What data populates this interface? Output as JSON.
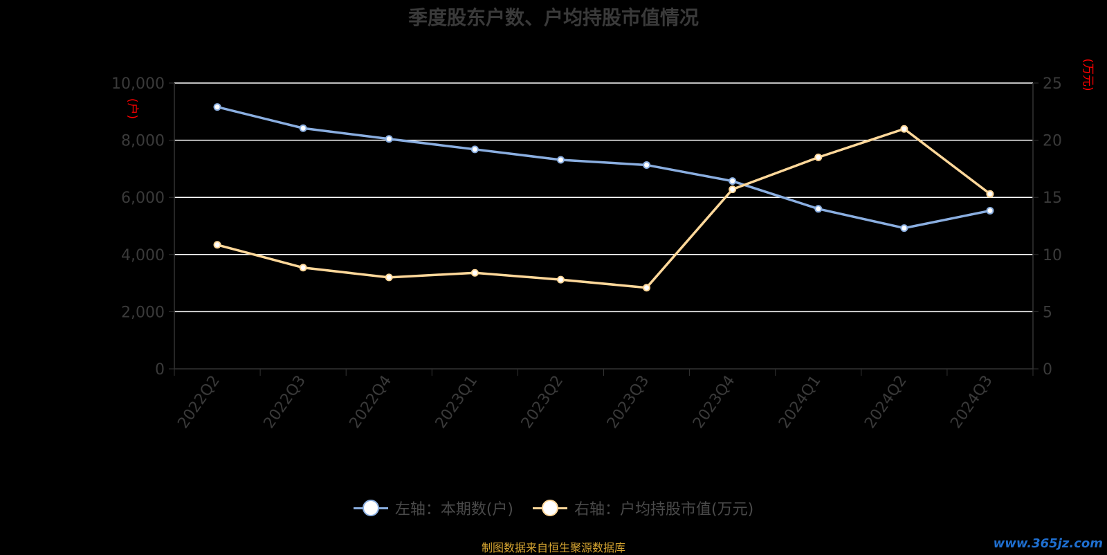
{
  "chart_data": {
    "type": "line",
    "title": "季度股东户数、户均持股市值情况",
    "categories": [
      "2022Q2",
      "2022Q3",
      "2022Q4",
      "2023Q1",
      "2023Q2",
      "2023Q3",
      "2023Q4",
      "2024Q1",
      "2024Q2",
      "2024Q3"
    ],
    "y_left": {
      "ticks": [
        "10,000",
        "8,000",
        "6,000",
        "4,000",
        "2,000",
        "0"
      ],
      "ylim": [
        0,
        10000
      ],
      "unit": "(户)"
    },
    "y_right": {
      "ticks": [
        "25",
        "20",
        "15",
        "10",
        "5",
        "0"
      ],
      "ylim": [
        0,
        25
      ],
      "unit": "(万元)"
    },
    "series": [
      {
        "name": "左轴：本期数(户)",
        "axis": "left",
        "color": "#8aaee0",
        "values": [
          9163,
          8420,
          8045,
          7680,
          7313,
          7132,
          6570,
          5598,
          4925,
          5534
        ]
      },
      {
        "name": "右轴：户均持股市值(万元)",
        "axis": "right",
        "color": "#ffd89a",
        "values": [
          10.85,
          8.85,
          8.0,
          8.4,
          7.8,
          7.1,
          15.7,
          18.5,
          20.99,
          15.3
        ]
      }
    ],
    "grid": true,
    "legend_position": "bottom"
  },
  "source_note": "制图数据来自恒生聚源数据库",
  "watermark": "www.365jz.com",
  "colors": {
    "background": "#000000",
    "gridline": "#ffffff",
    "axis_text": "#3a3a3a",
    "unit_text": "#ff0000"
  }
}
